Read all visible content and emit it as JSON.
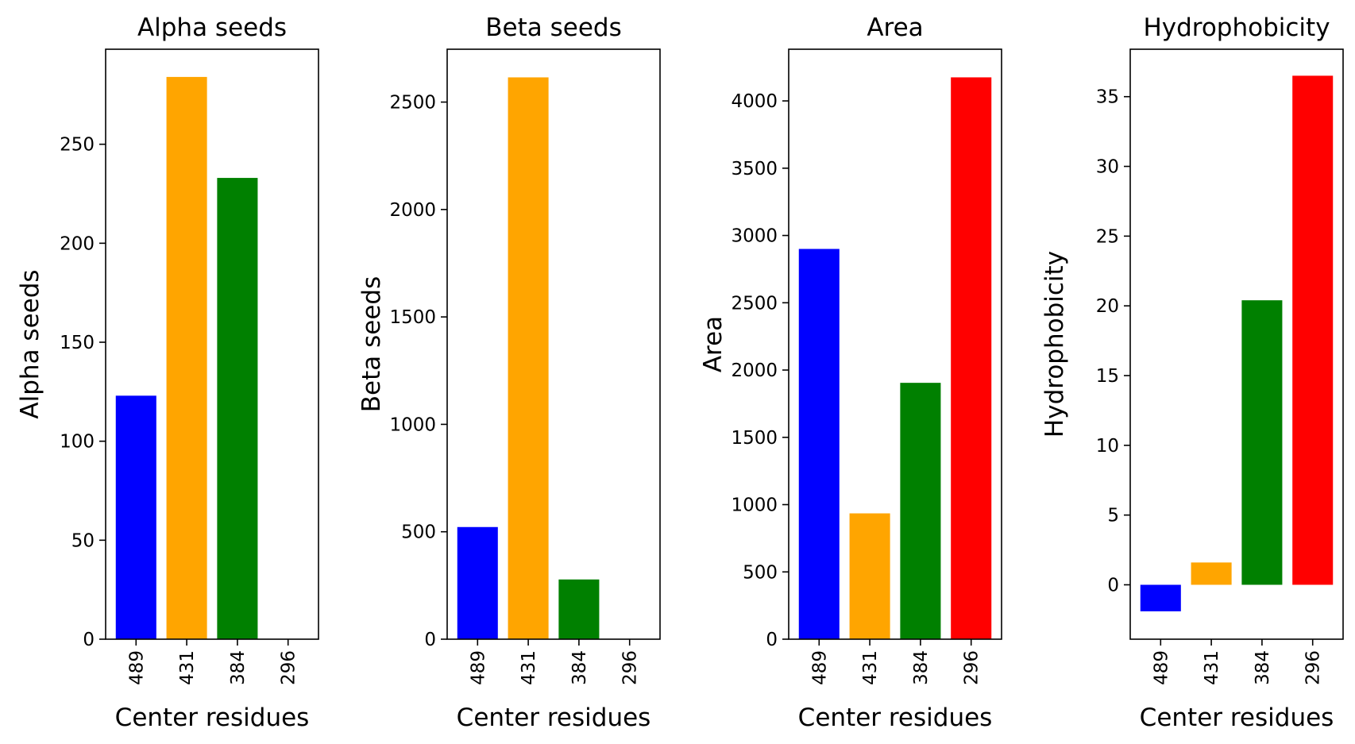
{
  "chart_data": [
    {
      "type": "bar",
      "title": "Alpha seeds",
      "xlabel": "Center residues",
      "ylabel": "Alpha seeds",
      "categories": [
        "489",
        "431",
        "384",
        "296"
      ],
      "values": [
        123,
        284,
        233,
        0
      ],
      "colors": [
        "#0000ff",
        "#ffa500",
        "#008000",
        "#ff0000"
      ],
      "ylim": [
        0,
        298
      ],
      "yticks": [
        0,
        50,
        100,
        150,
        200,
        250
      ],
      "grid": false
    },
    {
      "type": "bar",
      "title": "Beta seeds",
      "xlabel": "Center residues",
      "ylabel": "Beta seeds",
      "categories": [
        "489",
        "431",
        "384",
        "296"
      ],
      "values": [
        522,
        2615,
        278,
        0
      ],
      "colors": [
        "#0000ff",
        "#ffa500",
        "#008000",
        "#ff0000"
      ],
      "ylim": [
        0,
        2746
      ],
      "yticks": [
        0,
        500,
        1000,
        1500,
        2000,
        2500
      ],
      "grid": false
    },
    {
      "type": "bar",
      "title": "Area",
      "xlabel": "Center residues",
      "ylabel": "Area",
      "categories": [
        "489",
        "431",
        "384",
        "296"
      ],
      "values": [
        2900,
        935,
        1905,
        4175
      ],
      "colors": [
        "#0000ff",
        "#ffa500",
        "#008000",
        "#ff0000"
      ],
      "ylim": [
        0,
        4384
      ],
      "yticks": [
        0,
        500,
        1000,
        1500,
        2000,
        2500,
        3000,
        3500,
        4000
      ],
      "grid": false
    },
    {
      "type": "bar",
      "title": "Hydrophobicity",
      "xlabel": "Center residues",
      "ylabel": "Hydrophobicity",
      "categories": [
        "489",
        "431",
        "384",
        "296"
      ],
      "values": [
        -1.9,
        1.6,
        20.4,
        36.5
      ],
      "colors": [
        "#0000ff",
        "#ffa500",
        "#008000",
        "#ff0000"
      ],
      "ylim": [
        -3.9,
        38.4
      ],
      "yticks": [
        0,
        5,
        10,
        15,
        20,
        25,
        30,
        35
      ],
      "grid": false
    }
  ]
}
